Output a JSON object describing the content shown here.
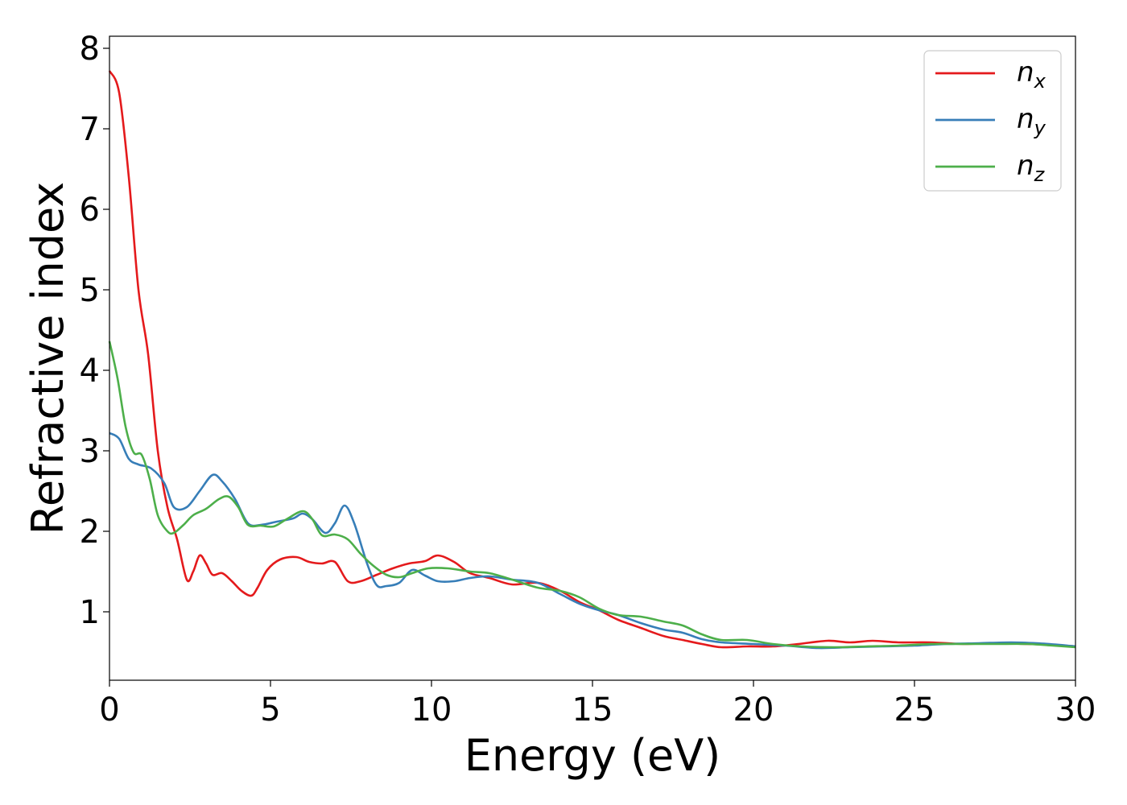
{
  "chart_data": {
    "type": "line",
    "xlabel": "Energy (eV)",
    "ylabel": "Refractive index",
    "xlim": [
      0,
      30
    ],
    "ylim": [
      0.15,
      8.15
    ],
    "xticks": [
      0,
      5,
      10,
      15,
      20,
      25,
      30
    ],
    "yticks": [
      1,
      2,
      3,
      4,
      5,
      6,
      7,
      8
    ],
    "grid": false,
    "legend_position": "top-right",
    "series": [
      {
        "name": "n_x",
        "label_base": "n",
        "label_sub": "x",
        "color": "#e41a1c",
        "points": [
          [
            0,
            7.72
          ],
          [
            0.3,
            7.45
          ],
          [
            0.6,
            6.4
          ],
          [
            0.9,
            5.0
          ],
          [
            1.2,
            4.2
          ],
          [
            1.5,
            3.0
          ],
          [
            1.8,
            2.3
          ],
          [
            2.1,
            1.9
          ],
          [
            2.4,
            1.4
          ],
          [
            2.6,
            1.5
          ],
          [
            2.8,
            1.7
          ],
          [
            3.0,
            1.6
          ],
          [
            3.2,
            1.46
          ],
          [
            3.5,
            1.48
          ],
          [
            3.8,
            1.38
          ],
          [
            4.1,
            1.26
          ],
          [
            4.4,
            1.2
          ],
          [
            4.6,
            1.3
          ],
          [
            4.9,
            1.52
          ],
          [
            5.3,
            1.65
          ],
          [
            5.8,
            1.68
          ],
          [
            6.2,
            1.62
          ],
          [
            6.6,
            1.6
          ],
          [
            7.0,
            1.62
          ],
          [
            7.4,
            1.38
          ],
          [
            7.8,
            1.38
          ],
          [
            8.3,
            1.46
          ],
          [
            8.8,
            1.54
          ],
          [
            9.3,
            1.6
          ],
          [
            9.8,
            1.63
          ],
          [
            10.2,
            1.7
          ],
          [
            10.7,
            1.62
          ],
          [
            11.2,
            1.48
          ],
          [
            11.8,
            1.42
          ],
          [
            12.5,
            1.34
          ],
          [
            13.3,
            1.36
          ],
          [
            14.0,
            1.26
          ],
          [
            14.6,
            1.12
          ],
          [
            15.2,
            1.02
          ],
          [
            15.8,
            0.9
          ],
          [
            16.5,
            0.8
          ],
          [
            17.2,
            0.7
          ],
          [
            17.8,
            0.65
          ],
          [
            18.4,
            0.6
          ],
          [
            19.0,
            0.56
          ],
          [
            19.8,
            0.57
          ],
          [
            20.6,
            0.57
          ],
          [
            21.4,
            0.6
          ],
          [
            22.3,
            0.64
          ],
          [
            23.0,
            0.62
          ],
          [
            23.7,
            0.64
          ],
          [
            24.5,
            0.62
          ],
          [
            25.5,
            0.62
          ],
          [
            26.5,
            0.6
          ],
          [
            27.5,
            0.61
          ],
          [
            28.5,
            0.6
          ],
          [
            29.3,
            0.59
          ],
          [
            30,
            0.57
          ]
        ]
      },
      {
        "name": "n_y",
        "label_base": "n",
        "label_sub": "y",
        "color": "#377eb8",
        "points": [
          [
            0,
            3.22
          ],
          [
            0.3,
            3.15
          ],
          [
            0.6,
            2.9
          ],
          [
            0.9,
            2.83
          ],
          [
            1.3,
            2.78
          ],
          [
            1.7,
            2.6
          ],
          [
            2.0,
            2.3
          ],
          [
            2.4,
            2.3
          ],
          [
            2.8,
            2.5
          ],
          [
            3.2,
            2.7
          ],
          [
            3.5,
            2.62
          ],
          [
            3.9,
            2.4
          ],
          [
            4.3,
            2.1
          ],
          [
            4.7,
            2.08
          ],
          [
            5.2,
            2.12
          ],
          [
            5.7,
            2.16
          ],
          [
            6.0,
            2.22
          ],
          [
            6.3,
            2.15
          ],
          [
            6.7,
            1.98
          ],
          [
            7.0,
            2.1
          ],
          [
            7.3,
            2.32
          ],
          [
            7.6,
            2.1
          ],
          [
            8.0,
            1.6
          ],
          [
            8.3,
            1.33
          ],
          [
            8.6,
            1.32
          ],
          [
            9.0,
            1.36
          ],
          [
            9.4,
            1.52
          ],
          [
            9.8,
            1.45
          ],
          [
            10.2,
            1.38
          ],
          [
            10.7,
            1.38
          ],
          [
            11.2,
            1.42
          ],
          [
            11.8,
            1.44
          ],
          [
            12.5,
            1.4
          ],
          [
            13.3,
            1.36
          ],
          [
            14.0,
            1.22
          ],
          [
            14.6,
            1.1
          ],
          [
            15.2,
            1.02
          ],
          [
            15.8,
            0.96
          ],
          [
            16.5,
            0.86
          ],
          [
            17.2,
            0.78
          ],
          [
            17.8,
            0.74
          ],
          [
            18.4,
            0.66
          ],
          [
            19.0,
            0.62
          ],
          [
            20.0,
            0.6
          ],
          [
            21.0,
            0.58
          ],
          [
            22.0,
            0.55
          ],
          [
            23.0,
            0.56
          ],
          [
            24.0,
            0.57
          ],
          [
            25.0,
            0.58
          ],
          [
            26.0,
            0.6
          ],
          [
            27.0,
            0.61
          ],
          [
            28.0,
            0.62
          ],
          [
            28.8,
            0.61
          ],
          [
            29.5,
            0.59
          ],
          [
            30,
            0.57
          ]
        ]
      },
      {
        "name": "n_z",
        "label_base": "n",
        "label_sub": "z",
        "color": "#4daf4a",
        "points": [
          [
            0,
            4.36
          ],
          [
            0.25,
            3.9
          ],
          [
            0.5,
            3.3
          ],
          [
            0.75,
            2.98
          ],
          [
            1.0,
            2.95
          ],
          [
            1.25,
            2.65
          ],
          [
            1.5,
            2.2
          ],
          [
            1.8,
            2.0
          ],
          [
            2.0,
            1.98
          ],
          [
            2.3,
            2.08
          ],
          [
            2.6,
            2.2
          ],
          [
            3.0,
            2.28
          ],
          [
            3.4,
            2.4
          ],
          [
            3.7,
            2.43
          ],
          [
            4.0,
            2.3
          ],
          [
            4.3,
            2.08
          ],
          [
            4.7,
            2.07
          ],
          [
            5.1,
            2.06
          ],
          [
            5.5,
            2.15
          ],
          [
            6.0,
            2.25
          ],
          [
            6.3,
            2.15
          ],
          [
            6.6,
            1.95
          ],
          [
            7.0,
            1.96
          ],
          [
            7.4,
            1.9
          ],
          [
            7.8,
            1.72
          ],
          [
            8.2,
            1.57
          ],
          [
            8.6,
            1.46
          ],
          [
            9.0,
            1.43
          ],
          [
            9.4,
            1.48
          ],
          [
            9.9,
            1.54
          ],
          [
            10.5,
            1.54
          ],
          [
            11.2,
            1.5
          ],
          [
            11.8,
            1.48
          ],
          [
            12.5,
            1.4
          ],
          [
            13.3,
            1.3
          ],
          [
            14.0,
            1.26
          ],
          [
            14.6,
            1.18
          ],
          [
            15.2,
            1.04
          ],
          [
            15.8,
            0.96
          ],
          [
            16.5,
            0.94
          ],
          [
            17.2,
            0.88
          ],
          [
            17.8,
            0.83
          ],
          [
            18.4,
            0.72
          ],
          [
            19.0,
            0.65
          ],
          [
            19.8,
            0.65
          ],
          [
            20.6,
            0.6
          ],
          [
            21.5,
            0.57
          ],
          [
            22.5,
            0.56
          ],
          [
            23.5,
            0.57
          ],
          [
            24.5,
            0.58
          ],
          [
            25.5,
            0.6
          ],
          [
            26.5,
            0.6
          ],
          [
            27.5,
            0.6
          ],
          [
            28.5,
            0.6
          ],
          [
            29.3,
            0.58
          ],
          [
            30,
            0.56
          ]
        ]
      }
    ]
  }
}
